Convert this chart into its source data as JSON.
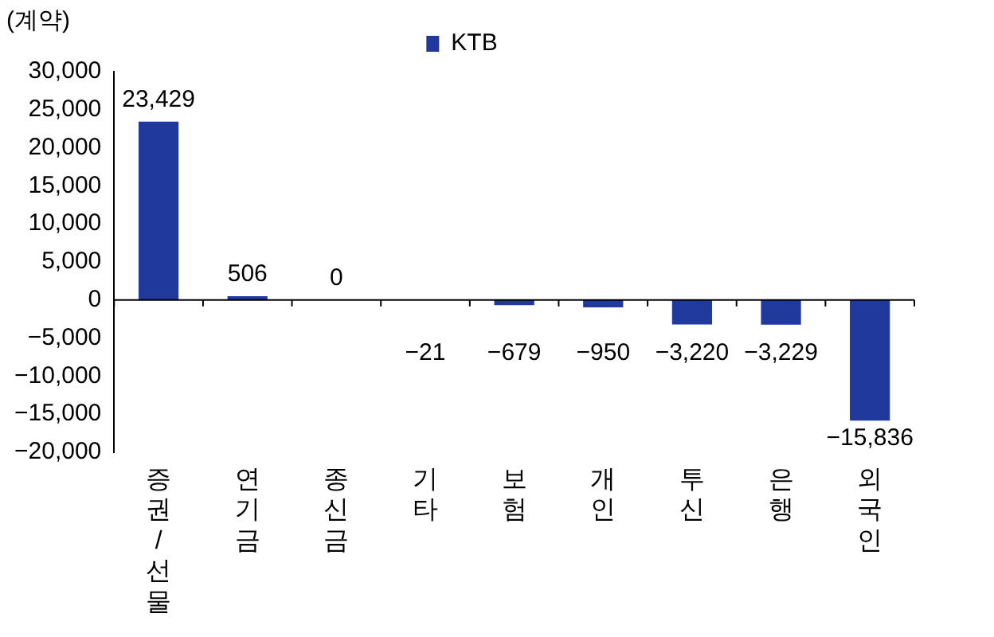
{
  "chart_data": {
    "type": "bar",
    "ylabel": "(계약)",
    "categories": [
      "증권/선물",
      "연기금",
      "종신금",
      "기타",
      "보험",
      "개인",
      "투신",
      "은행",
      "외국인"
    ],
    "series": [
      {
        "name": "KTB",
        "color": "#1f3a9c",
        "values": [
          23429,
          506,
          0,
          -21,
          -679,
          -950,
          -3220,
          -3229,
          -15836
        ],
        "value_labels": [
          "23,429",
          "506",
          "0",
          "−21",
          "−679",
          "−950",
          "−3,220",
          "−3,229",
          "−15,836"
        ]
      }
    ],
    "ylim": [
      -20000,
      30000
    ],
    "yticks": [
      {
        "value": -20000,
        "label": "−20,000"
      },
      {
        "value": -15000,
        "label": "−15,000"
      },
      {
        "value": -10000,
        "label": "−10,000"
      },
      {
        "value": -5000,
        "label": "−5,000"
      },
      {
        "value": 0,
        "label": "0"
      },
      {
        "value": 5000,
        "label": "5,000"
      },
      {
        "value": 10000,
        "label": "10,000"
      },
      {
        "value": 15000,
        "label": "15,000"
      },
      {
        "value": 20000,
        "label": "20,000"
      },
      {
        "value": 25000,
        "label": "25,000"
      },
      {
        "value": 30000,
        "label": "30,000"
      }
    ],
    "legend": "top"
  }
}
